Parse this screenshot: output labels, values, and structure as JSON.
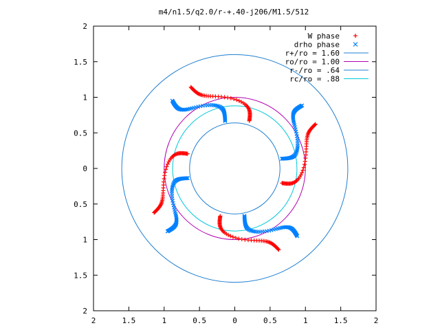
{
  "chart_data": {
    "type": "scatter",
    "title": "m4/n1.5/q2.0/r-+.40-j206/M1.5/512",
    "xlim": [
      -2,
      2
    ],
    "ylim": [
      -2,
      2
    ],
    "grid": false,
    "legend_position": "top-right",
    "x_ticks": [
      {
        "value": -2,
        "label": "2"
      },
      {
        "value": -1.5,
        "label": "1.5"
      },
      {
        "value": -1,
        "label": "1"
      },
      {
        "value": -0.5,
        "label": "0.5"
      },
      {
        "value": 0,
        "label": "0"
      },
      {
        "value": 0.5,
        "label": "0.5"
      },
      {
        "value": 1,
        "label": "1"
      },
      {
        "value": 1.5,
        "label": "1.5"
      },
      {
        "value": 2,
        "label": "2"
      }
    ],
    "y_ticks": [
      {
        "value": 2,
        "label": "2"
      },
      {
        "value": 1.5,
        "label": "1.5"
      },
      {
        "value": 1,
        "label": "1"
      },
      {
        "value": 0.5,
        "label": "0.5"
      },
      {
        "value": 0,
        "label": "0"
      },
      {
        "value": -0.5,
        "label": "0.5"
      },
      {
        "value": -1,
        "label": "1"
      },
      {
        "value": -1.5,
        "label": "1.5"
      },
      {
        "value": -2,
        "label": "2"
      }
    ],
    "series": [
      {
        "name": "W phase",
        "marker": "plus",
        "color": "#ff0000"
      },
      {
        "name": "drho phase",
        "marker": "cross",
        "color": "#0080ff"
      }
    ],
    "circles": [
      {
        "name": "r+/ro = 1.60",
        "radius": 1.6,
        "color": "#1f7fd0"
      },
      {
        "name": "ro/ro = 1.00",
        "radius": 1.0,
        "color": "#b000b0"
      },
      {
        "name": "r-/ro = .64",
        "radius": 0.64,
        "color": "#1f7fd0"
      },
      {
        "name": "rc/ro = .88",
        "radius": 0.88,
        "color": "#00c8d8"
      }
    ],
    "pattern": {
      "arms": 4,
      "vortex_angles_deg": [
        0,
        90,
        180,
        270
      ]
    }
  }
}
